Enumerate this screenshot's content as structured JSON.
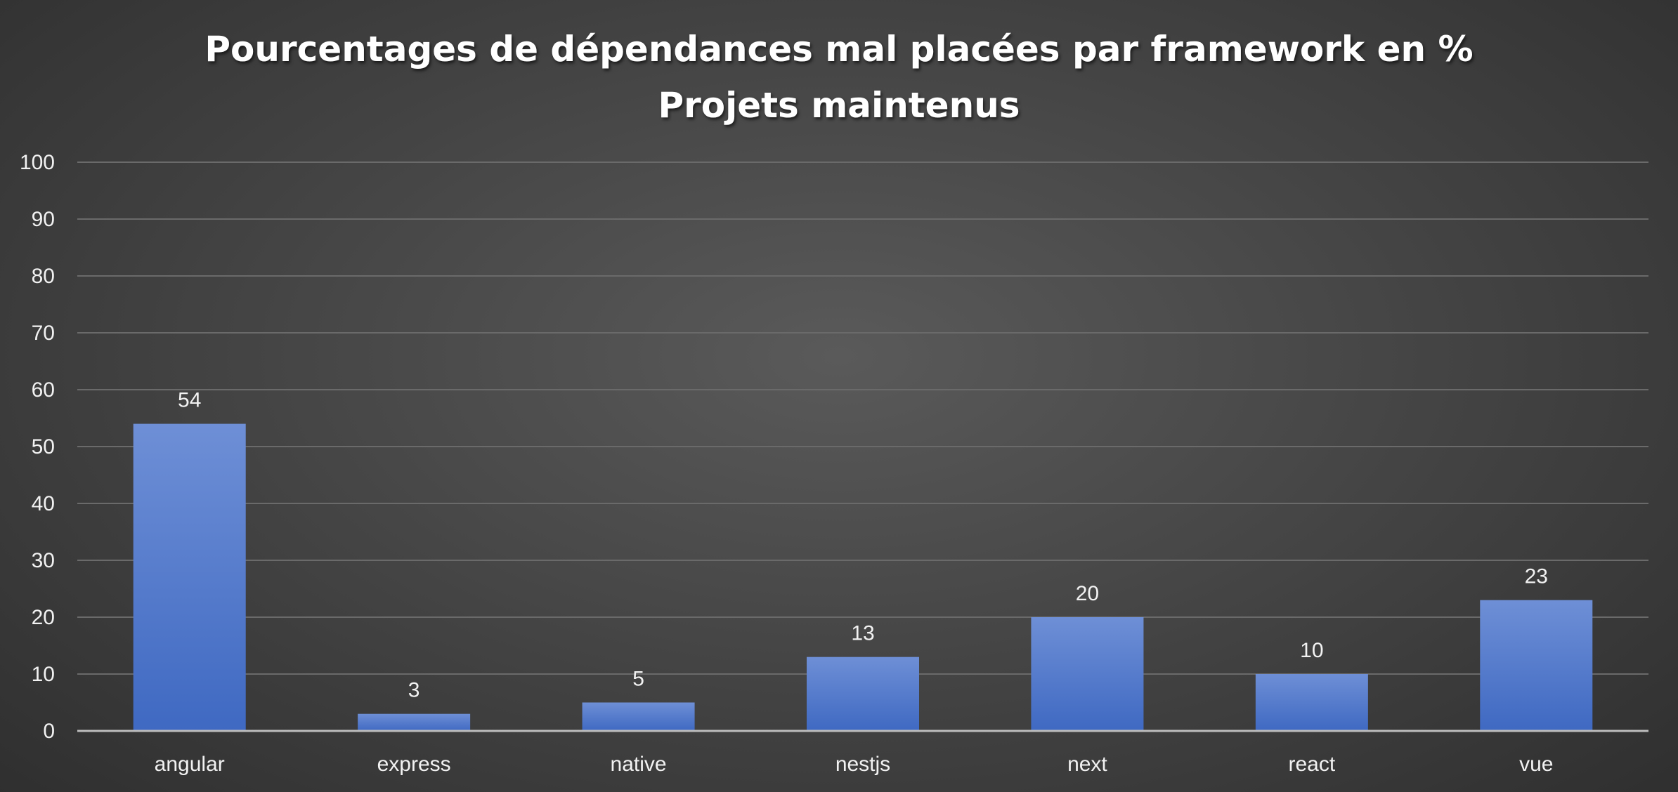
{
  "chart_data": {
    "type": "bar",
    "title_lines": [
      "Pourcentages de dépendances mal placées par framework en %",
      "Projets maintenus"
    ],
    "categories": [
      "angular",
      "express",
      "native",
      "nestjs",
      "next",
      "react",
      "vue"
    ],
    "values": [
      54,
      3,
      5,
      13,
      20,
      10,
      23
    ],
    "data_labels": [
      "54",
      "3",
      "5",
      "13",
      "20",
      "10",
      "23"
    ],
    "ylim": [
      0,
      100
    ],
    "yticks": [
      0,
      10,
      20,
      30,
      40,
      50,
      60,
      70,
      80,
      90,
      100
    ],
    "xlabel": "",
    "ylabel": "",
    "grid": true,
    "legend": "none",
    "bar_color_top": "#6e8fd6",
    "bar_color_bottom": "#3f69c2"
  }
}
